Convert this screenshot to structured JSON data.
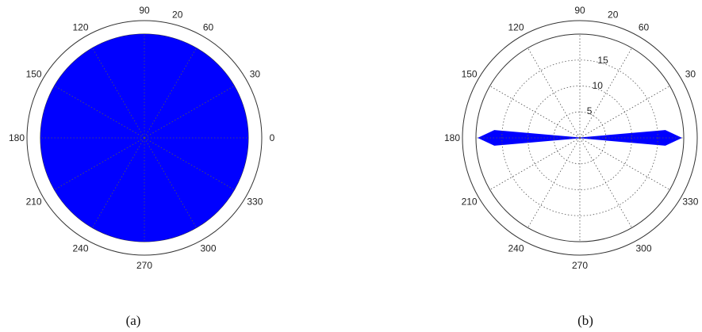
{
  "chart_data": [
    {
      "type": "polar",
      "panel_label": "(a)",
      "r_max": 20,
      "r_ticks": [],
      "angle_ticks": [
        0,
        30,
        60,
        90,
        120,
        150,
        180,
        210,
        240,
        270,
        300,
        330
      ],
      "angle_labels": [
        "0",
        "30",
        "60",
        "90",
        "120",
        "150",
        "180",
        "210",
        "240",
        "270",
        "300",
        "330"
      ],
      "extra_labels": [
        {
          "angle": 75,
          "text": "20"
        }
      ],
      "fill_color": "#0000ff",
      "series": [
        {
          "fill": "disk",
          "r": 20
        }
      ]
    },
    {
      "type": "polar",
      "panel_label": "(b)",
      "r_max": 20,
      "r_ticks": [
        5,
        10,
        15
      ],
      "angle_ticks": [
        0,
        30,
        60,
        90,
        120,
        150,
        180,
        210,
        240,
        270,
        300,
        330
      ],
      "angle_labels": [
        "0",
        "30",
        "60",
        "90",
        "120",
        "150",
        "180",
        "210",
        "240",
        "270",
        "300",
        "330"
      ],
      "extra_labels": [
        {
          "angle": 75,
          "text": "20"
        }
      ],
      "fill_color": "#0000ff",
      "series": [
        {
          "fill": "lobes",
          "theta": [
            0,
            5,
            180,
            185
          ],
          "r": [
            19.5,
            16.5,
            19.5,
            16.5
          ]
        }
      ]
    }
  ]
}
